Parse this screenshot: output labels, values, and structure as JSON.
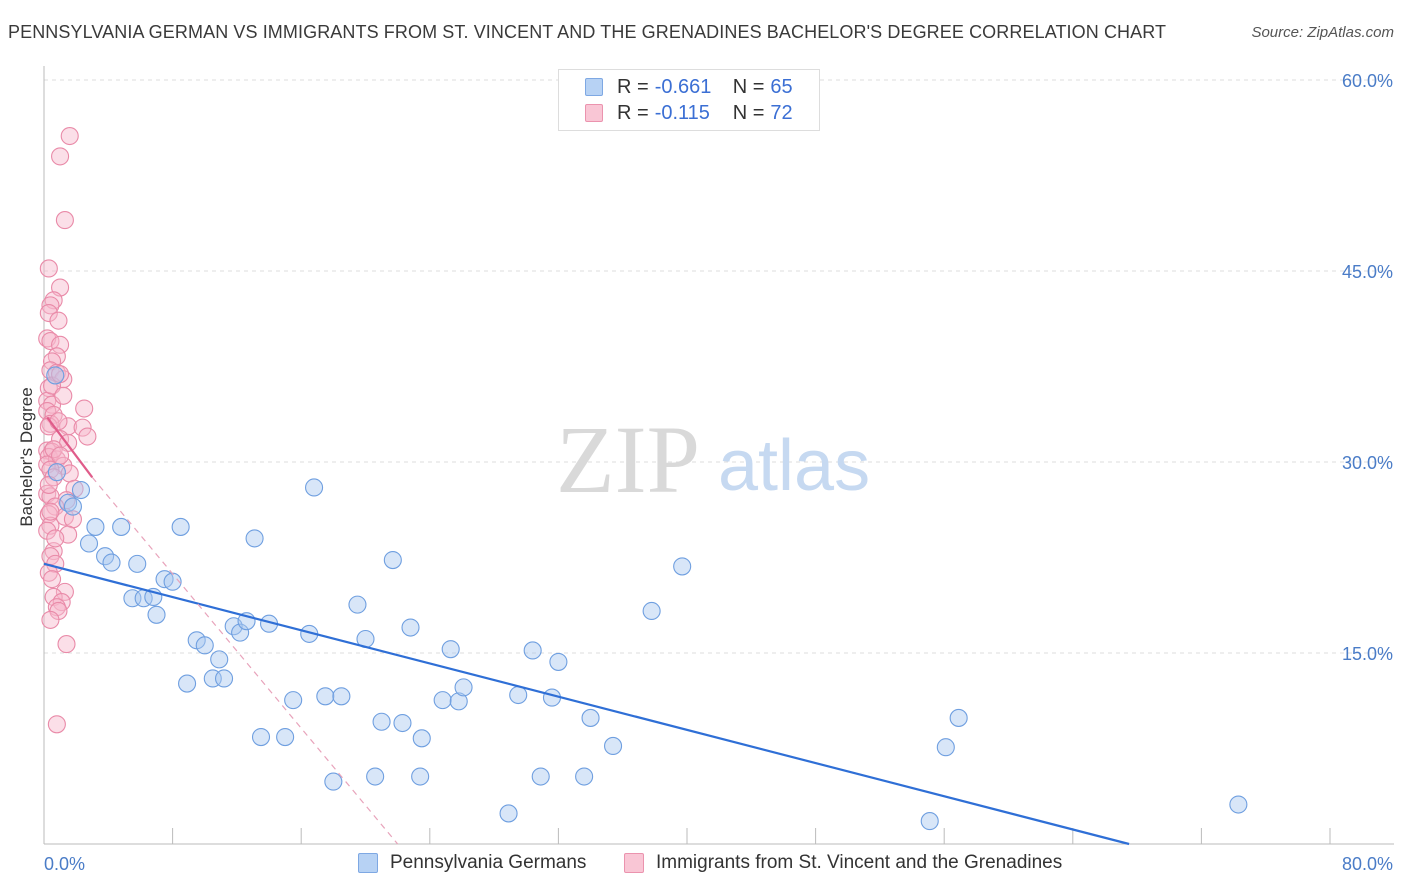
{
  "title": "PENNSYLVANIA GERMAN VS IMMIGRANTS FROM ST. VINCENT AND THE GRENADINES BACHELOR'S DEGREE CORRELATION CHART",
  "source": "Source: ZipAtlas.com",
  "watermark": {
    "zip": "ZIP",
    "atlas": "atlas"
  },
  "legend": [
    {
      "r_label": "R =",
      "r_value": "-0.661",
      "n_label": "N =",
      "n_value": "65"
    },
    {
      "r_label": "R =",
      "r_value": "-0.115",
      "n_label": "N =",
      "n_value": "72"
    }
  ],
  "chart_data": {
    "type": "scatter",
    "title": "PENNSYLVANIA GERMAN VS IMMIGRANTS FROM ST. VINCENT AND THE GRENADINES BACHELOR'S DEGREE CORRELATION CHART",
    "xlabel": "",
    "ylabel": "Bachelor's Degree",
    "xlim": [
      0,
      80
    ],
    "ylim": [
      0,
      60
    ],
    "x_tick_labels": [
      "0.0%",
      "80.0%"
    ],
    "y_ticks": [
      15,
      30,
      45,
      60
    ],
    "y_tick_labels": [
      "15.0%",
      "30.0%",
      "45.0%",
      "60.0%"
    ],
    "grid": true,
    "legend_position": "bottom",
    "series": [
      {
        "name": "Pennsylvania Germans",
        "color": "#a9c8f0",
        "stroke": "#6f9fe0",
        "line_color": "#2f6fd6",
        "trend": {
          "x": [
            0,
            67.5
          ],
          "y": [
            22.0,
            0
          ]
        },
        "points": [
          [
            0.7,
            36.8
          ],
          [
            0.8,
            29.2
          ],
          [
            1.5,
            26.8
          ],
          [
            1.8,
            26.5
          ],
          [
            2.3,
            27.8
          ],
          [
            2.8,
            23.6
          ],
          [
            3.2,
            24.9
          ],
          [
            3.8,
            22.6
          ],
          [
            4.2,
            22.1
          ],
          [
            4.8,
            24.9
          ],
          [
            5.5,
            19.3
          ],
          [
            5.8,
            22.0
          ],
          [
            6.2,
            19.3
          ],
          [
            6.8,
            19.4
          ],
          [
            7.0,
            18.0
          ],
          [
            7.5,
            20.8
          ],
          [
            8.0,
            20.6
          ],
          [
            8.5,
            24.9
          ],
          [
            8.9,
            12.6
          ],
          [
            9.5,
            16.0
          ],
          [
            10.0,
            15.6
          ],
          [
            10.5,
            13.0
          ],
          [
            10.9,
            14.5
          ],
          [
            11.2,
            13.0
          ],
          [
            11.8,
            17.1
          ],
          [
            12.2,
            16.6
          ],
          [
            12.6,
            17.5
          ],
          [
            13.1,
            24.0
          ],
          [
            13.5,
            8.4
          ],
          [
            14.0,
            17.3
          ],
          [
            15.0,
            8.4
          ],
          [
            15.5,
            11.3
          ],
          [
            16.5,
            16.5
          ],
          [
            16.8,
            28.0
          ],
          [
            17.5,
            11.6
          ],
          [
            18.0,
            4.9
          ],
          [
            18.5,
            11.6
          ],
          [
            19.5,
            18.8
          ],
          [
            20.0,
            16.1
          ],
          [
            20.6,
            5.3
          ],
          [
            21.0,
            9.6
          ],
          [
            21.7,
            22.3
          ],
          [
            22.3,
            9.5
          ],
          [
            22.8,
            17.0
          ],
          [
            23.4,
            5.3
          ],
          [
            23.5,
            8.3
          ],
          [
            24.8,
            11.3
          ],
          [
            25.3,
            15.3
          ],
          [
            25.8,
            11.2
          ],
          [
            26.1,
            12.3
          ],
          [
            28.9,
            2.4
          ],
          [
            29.5,
            11.7
          ],
          [
            30.4,
            15.2
          ],
          [
            30.9,
            5.3
          ],
          [
            31.6,
            11.5
          ],
          [
            32.0,
            14.3
          ],
          [
            33.6,
            5.3
          ],
          [
            34.0,
            9.9
          ],
          [
            35.4,
            7.7
          ],
          [
            37.8,
            18.3
          ],
          [
            39.7,
            21.8
          ],
          [
            55.1,
            1.8
          ],
          [
            56.1,
            7.6
          ],
          [
            56.9,
            9.9
          ],
          [
            74.3,
            3.1
          ]
        ]
      },
      {
        "name": "Immigrants from St. Vincent and the Grenadines",
        "color": "#f6b8cb",
        "stroke": "#e98aa8",
        "line_color": "#e05c8a",
        "trend": {
          "x": [
            0.2,
            3.0
          ],
          "y": [
            33.5,
            28.8
          ]
        },
        "trend_dashed": {
          "x": [
            3.0,
            22.0
          ],
          "y": [
            28.8,
            0
          ]
        },
        "points": [
          [
            1.6,
            55.6
          ],
          [
            1.0,
            54.0
          ],
          [
            1.3,
            49.0
          ],
          [
            0.3,
            45.2
          ],
          [
            1.0,
            43.7
          ],
          [
            0.6,
            42.7
          ],
          [
            0.4,
            42.3
          ],
          [
            0.3,
            41.7
          ],
          [
            0.9,
            41.1
          ],
          [
            0.2,
            39.7
          ],
          [
            0.4,
            39.5
          ],
          [
            1.0,
            39.2
          ],
          [
            0.8,
            38.3
          ],
          [
            0.5,
            37.9
          ],
          [
            0.4,
            37.2
          ],
          [
            0.8,
            37.0
          ],
          [
            1.2,
            36.5
          ],
          [
            0.3,
            35.8
          ],
          [
            0.2,
            34.8
          ],
          [
            0.5,
            34.5
          ],
          [
            2.5,
            34.2
          ],
          [
            0.2,
            34.0
          ],
          [
            0.6,
            33.7
          ],
          [
            0.4,
            33.0
          ],
          [
            0.3,
            32.8
          ],
          [
            1.5,
            32.8
          ],
          [
            2.4,
            32.7
          ],
          [
            1.0,
            31.8
          ],
          [
            1.5,
            31.5
          ],
          [
            2.7,
            32.0
          ],
          [
            0.2,
            30.9
          ],
          [
            0.5,
            30.8
          ],
          [
            0.3,
            30.4
          ],
          [
            0.8,
            30.2
          ],
          [
            0.2,
            29.8
          ],
          [
            1.2,
            29.7
          ],
          [
            0.4,
            29.4
          ],
          [
            1.6,
            29.1
          ],
          [
            0.6,
            28.8
          ],
          [
            1.9,
            27.9
          ],
          [
            0.2,
            27.5
          ],
          [
            0.4,
            27.3
          ],
          [
            1.4,
            27.0
          ],
          [
            0.7,
            26.5
          ],
          [
            0.3,
            25.9
          ],
          [
            1.3,
            25.7
          ],
          [
            1.8,
            25.5
          ],
          [
            0.4,
            25.0
          ],
          [
            0.2,
            24.6
          ],
          [
            1.5,
            24.3
          ],
          [
            0.6,
            23.0
          ],
          [
            0.4,
            22.6
          ],
          [
            0.7,
            22.0
          ],
          [
            0.3,
            21.3
          ],
          [
            0.5,
            20.8
          ],
          [
            1.3,
            19.8
          ],
          [
            0.6,
            19.4
          ],
          [
            1.1,
            19.0
          ],
          [
            0.8,
            18.6
          ],
          [
            0.9,
            18.3
          ],
          [
            0.4,
            17.6
          ],
          [
            1.4,
            15.7
          ],
          [
            0.8,
            9.4
          ],
          [
            0.5,
            36.0
          ],
          [
            1.0,
            36.9
          ],
          [
            0.3,
            28.2
          ],
          [
            0.9,
            33.2
          ],
          [
            0.6,
            31.0
          ],
          [
            1.2,
            35.2
          ],
          [
            0.4,
            26.1
          ],
          [
            0.7,
            24.0
          ],
          [
            1.0,
            30.5
          ]
        ]
      }
    ]
  }
}
